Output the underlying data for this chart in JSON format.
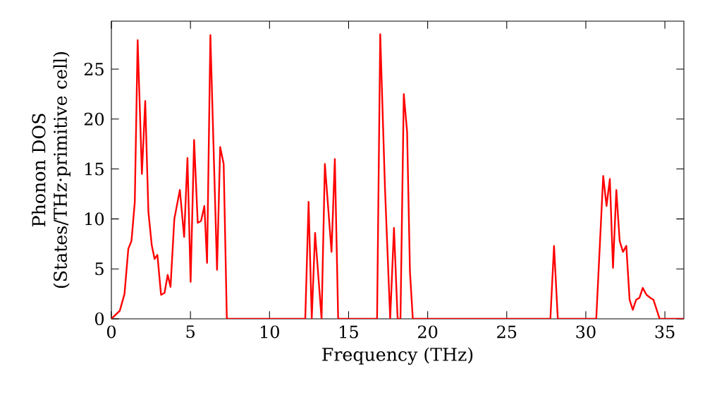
{
  "chart_data": {
    "type": "line",
    "xlabel": "Frequency (THz)",
    "ylabel": "Phonon DOS (States/THz·primitive cell)",
    "xlim": [
      0,
      36.2
    ],
    "ylim": [
      0,
      29.8
    ],
    "xticks": [
      0,
      5,
      10,
      15,
      20,
      25,
      30,
      35
    ],
    "yticks": [
      0,
      5,
      10,
      15,
      20,
      25
    ],
    "grid": false,
    "series": [
      {
        "color": "#ff0000",
        "x": [
          0,
          0.53,
          0.83,
          1.07,
          1.27,
          1.48,
          1.66,
          1.93,
          2.14,
          2.34,
          2.55,
          2.73,
          2.91,
          3.14,
          3.36,
          3.56,
          3.74,
          3.98,
          4.33,
          4.6,
          4.81,
          5.01,
          5.23,
          5.46,
          5.67,
          5.88,
          6.05,
          6.26,
          6.68,
          6.88,
          7.1,
          7.3,
          12.26,
          12.47,
          12.67,
          12.88,
          13.29,
          13.5,
          13.92,
          14.13,
          14.34,
          16.8,
          17.0,
          17.3,
          17.63,
          17.87,
          18.1,
          18.28,
          18.49,
          18.7,
          18.88,
          19.06,
          27.76,
          27.99,
          28.23,
          30.66,
          31.1,
          31.31,
          31.52,
          31.72,
          31.93,
          32.14,
          32.35,
          32.56,
          32.77,
          32.97,
          33.18,
          33.39,
          33.6,
          33.84,
          34.08,
          34.28,
          34.67,
          36.2
        ],
        "values": [
          0,
          0.8,
          2.5,
          7,
          7.8,
          11.7,
          27.9,
          14.5,
          21.8,
          10.7,
          7.4,
          6.0,
          6.4,
          2.4,
          2.6,
          4.4,
          3.2,
          10.0,
          12.9,
          8.2,
          16.1,
          3.7,
          17.9,
          9.6,
          9.8,
          11.3,
          5.6,
          28.4,
          4.9,
          17.2,
          15.5,
          0,
          0,
          11.7,
          0,
          8.6,
          0,
          15.5,
          6.7,
          16.0,
          0,
          0,
          28.5,
          13.1,
          0,
          9.1,
          0,
          0,
          22.5,
          18.7,
          4.7,
          0,
          0,
          7.3,
          0,
          0,
          14.3,
          11.3,
          14.0,
          5.1,
          12.9,
          7.8,
          6.7,
          7.3,
          1.9,
          0.9,
          1.9,
          2.1,
          3.1,
          2.4,
          2.1,
          1.9,
          0,
          0
        ]
      }
    ]
  }
}
